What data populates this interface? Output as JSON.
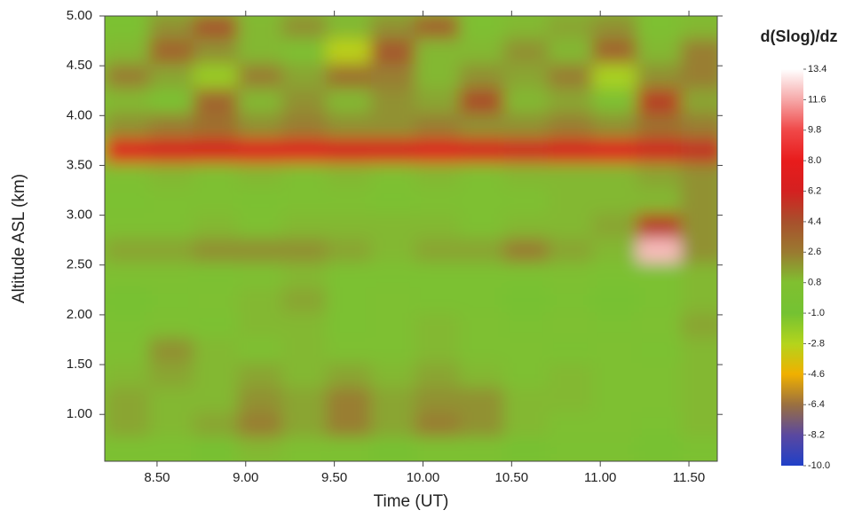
{
  "chart_data": {
    "type": "heatmap",
    "x_label": "Time (UT)",
    "y_label": "Altitude ASL (km)",
    "x": [
      8.33,
      8.58,
      8.83,
      9.08,
      9.33,
      9.58,
      9.83,
      10.08,
      10.33,
      10.58,
      10.83,
      11.08,
      11.33,
      11.58
    ],
    "y": [
      0.65,
      0.9,
      1.15,
      1.4,
      1.65,
      1.9,
      2.15,
      2.4,
      2.65,
      2.9,
      3.15,
      3.4,
      3.65,
      3.9,
      4.15,
      4.4,
      4.65,
      4.9
    ],
    "z": [
      [
        0,
        0,
        -0.5,
        1,
        0.5,
        0,
        -0.5,
        0,
        0,
        -0.5,
        0,
        0,
        -0.5,
        0
      ],
      [
        1.5,
        1,
        1.5,
        2.5,
        1.5,
        2.5,
        1.5,
        2.5,
        2,
        1,
        0.5,
        0.5,
        0,
        1
      ],
      [
        1.5,
        1,
        1,
        2,
        1.5,
        2.5,
        1.5,
        2,
        2,
        1,
        1,
        0.5,
        0.5,
        1
      ],
      [
        1,
        1.5,
        1,
        1.5,
        1,
        1.5,
        1,
        1.5,
        1,
        0.5,
        1,
        0.5,
        0.5,
        1
      ],
      [
        0.5,
        2,
        1,
        0.5,
        1,
        0.5,
        0.5,
        1,
        0.5,
        0.5,
        0,
        0.5,
        0,
        1
      ],
      [
        0,
        0.5,
        0,
        1,
        1,
        0,
        0.5,
        1,
        0.5,
        0,
        0.5,
        0,
        0.5,
        1.5
      ],
      [
        -0.5,
        0,
        0.5,
        1,
        1.5,
        0,
        0.5,
        0,
        0,
        -0.5,
        0,
        -0.5,
        0,
        1
      ],
      [
        0.5,
        0.5,
        0,
        0.5,
        1,
        0,
        0,
        0,
        0,
        0,
        0.5,
        0,
        0,
        1
      ],
      [
        1.5,
        1.5,
        2,
        2,
        2,
        1.5,
        1,
        1.5,
        1.5,
        2.5,
        1.5,
        1,
        12,
        2
      ],
      [
        0.5,
        0.5,
        1,
        0.5,
        1,
        1,
        1,
        1,
        0.5,
        1,
        1,
        1.5,
        5,
        2
      ],
      [
        0,
        0.5,
        0.5,
        0,
        0.5,
        0.5,
        0,
        0.5,
        0.5,
        0.5,
        1,
        1,
        1,
        2
      ],
      [
        0.5,
        1,
        0.5,
        1,
        0.5,
        1,
        0.5,
        1,
        0.5,
        1,
        1,
        1,
        1.5,
        2
      ],
      [
        7,
        6.5,
        6.5,
        7,
        7,
        6.5,
        6.5,
        7,
        6.5,
        6,
        6.5,
        7,
        6,
        5.5
      ],
      [
        2,
        2.5,
        3,
        2,
        2.5,
        2,
        2,
        2.5,
        2,
        2,
        2.5,
        2,
        3,
        2.5
      ],
      [
        1,
        0,
        3.5,
        1,
        2,
        1,
        2,
        1.5,
        4.5,
        1,
        1.5,
        0.5,
        5,
        1.5
      ],
      [
        2.5,
        1.5,
        -2,
        2.5,
        1.5,
        3,
        2.5,
        1,
        2,
        1.5,
        2.5,
        -2.5,
        2,
        2.5
      ],
      [
        1,
        3.5,
        2,
        1,
        0.5,
        -3,
        4,
        1,
        1,
        2,
        1,
        3.5,
        1,
        2.5
      ],
      [
        0,
        2,
        4,
        1,
        2,
        1,
        2,
        3.5,
        0.5,
        1,
        1.5,
        2,
        0.5,
        1
      ]
    ],
    "xlim": [
      8.205,
      11.66
    ],
    "ylim": [
      0.53,
      5.0
    ],
    "xticks": [
      {
        "value": 8.5,
        "label": "8.50"
      },
      {
        "value": 9,
        "label": "9.00"
      },
      {
        "value": 9.5,
        "label": "9.50"
      },
      {
        "value": 10,
        "label": "10.00"
      },
      {
        "value": 10.5,
        "label": "10.50"
      },
      {
        "value": 11,
        "label": "11.00"
      },
      {
        "value": 11.5,
        "label": "11.50"
      }
    ],
    "yticks": [
      {
        "value": 1,
        "label": "1.00"
      },
      {
        "value": 1.5,
        "label": "1.50"
      },
      {
        "value": 2,
        "label": "2.00"
      },
      {
        "value": 2.5,
        "label": "2.50"
      },
      {
        "value": 3,
        "label": "3.00"
      },
      {
        "value": 3.5,
        "label": "3.50"
      },
      {
        "value": 4,
        "label": "4.00"
      },
      {
        "value": 4.5,
        "label": "4.50"
      },
      {
        "value": 5,
        "label": "5.00"
      }
    ],
    "colorbar": {
      "title": "d(Slog)/dz",
      "clim": [
        -10,
        13.4
      ],
      "ticks": [
        13.4,
        11.6,
        9.8,
        {
          "value": 8,
          "label": "8.0"
        },
        6.2,
        4.4,
        2.6,
        0.8,
        {
          "value": -1,
          "label": "-1.0"
        },
        -2.8,
        -4.6,
        -6.4,
        -8.2,
        {
          "value": -10,
          "label": "-10.0"
        }
      ],
      "colors": [
        "#ffffff",
        "#f6a8a8",
        "#f04848",
        "#e81c1c",
        "#d42020",
        "#a8502c",
        "#9a7a30",
        "#80c030",
        "#74c232",
        "#b4d41c",
        "#f0b000",
        "#9a7040",
        "#5a48a0",
        "#2040c8"
      ]
    }
  }
}
